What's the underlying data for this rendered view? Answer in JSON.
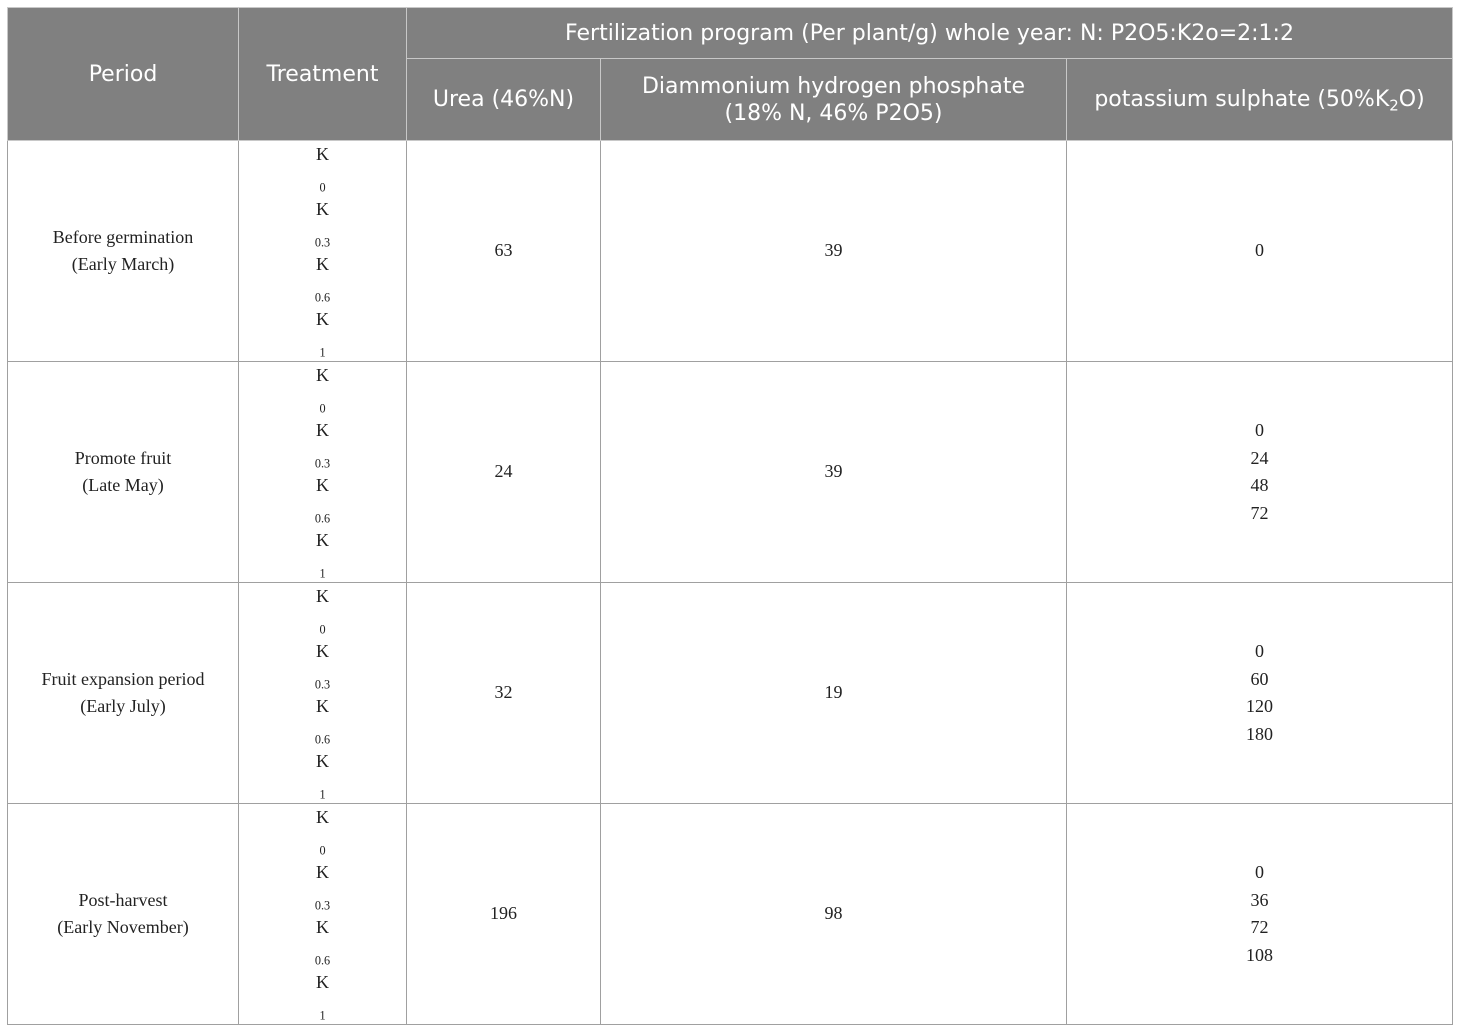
{
  "header": {
    "period": "Period",
    "treatment": "Treatment",
    "program": "Fertilization program (Per plant/g) whole year: N: P2O5:K2o=2:1:2",
    "urea": "Urea (46%N)",
    "dap_line1": "Diammonium hydrogen phosphate",
    "dap_line2": "(18% N, 46% P2O5)",
    "potassium_prefix": "potassium sulphate (50%K",
    "potassium_sub": "2",
    "potassium_suffix": "O)"
  },
  "treatments": [
    {
      "base": "K",
      "sub": "0"
    },
    {
      "base": "K",
      "sub": "0.3"
    },
    {
      "base": "K",
      "sub": "0.6"
    },
    {
      "base": "K",
      "sub": "1"
    }
  ],
  "rows": [
    {
      "period_line1": "Before germination",
      "period_line2": "(Early March)",
      "urea": "63",
      "dap": "39",
      "potassium": [
        "0"
      ]
    },
    {
      "period_line1": "Promote fruit",
      "period_line2": "(Late May)",
      "urea": "24",
      "dap": "39",
      "potassium": [
        "0",
        "24",
        "48",
        "72"
      ]
    },
    {
      "period_line1": "Fruit expansion period",
      "period_line2": "(Early July)",
      "urea": "32",
      "dap": "19",
      "potassium": [
        "0",
        "60",
        "120",
        "180"
      ]
    },
    {
      "period_line1": "Post-harvest",
      "period_line2": "(Early November)",
      "urea": "196",
      "dap": "98",
      "potassium": [
        "0",
        "36",
        "72",
        "108"
      ]
    }
  ]
}
